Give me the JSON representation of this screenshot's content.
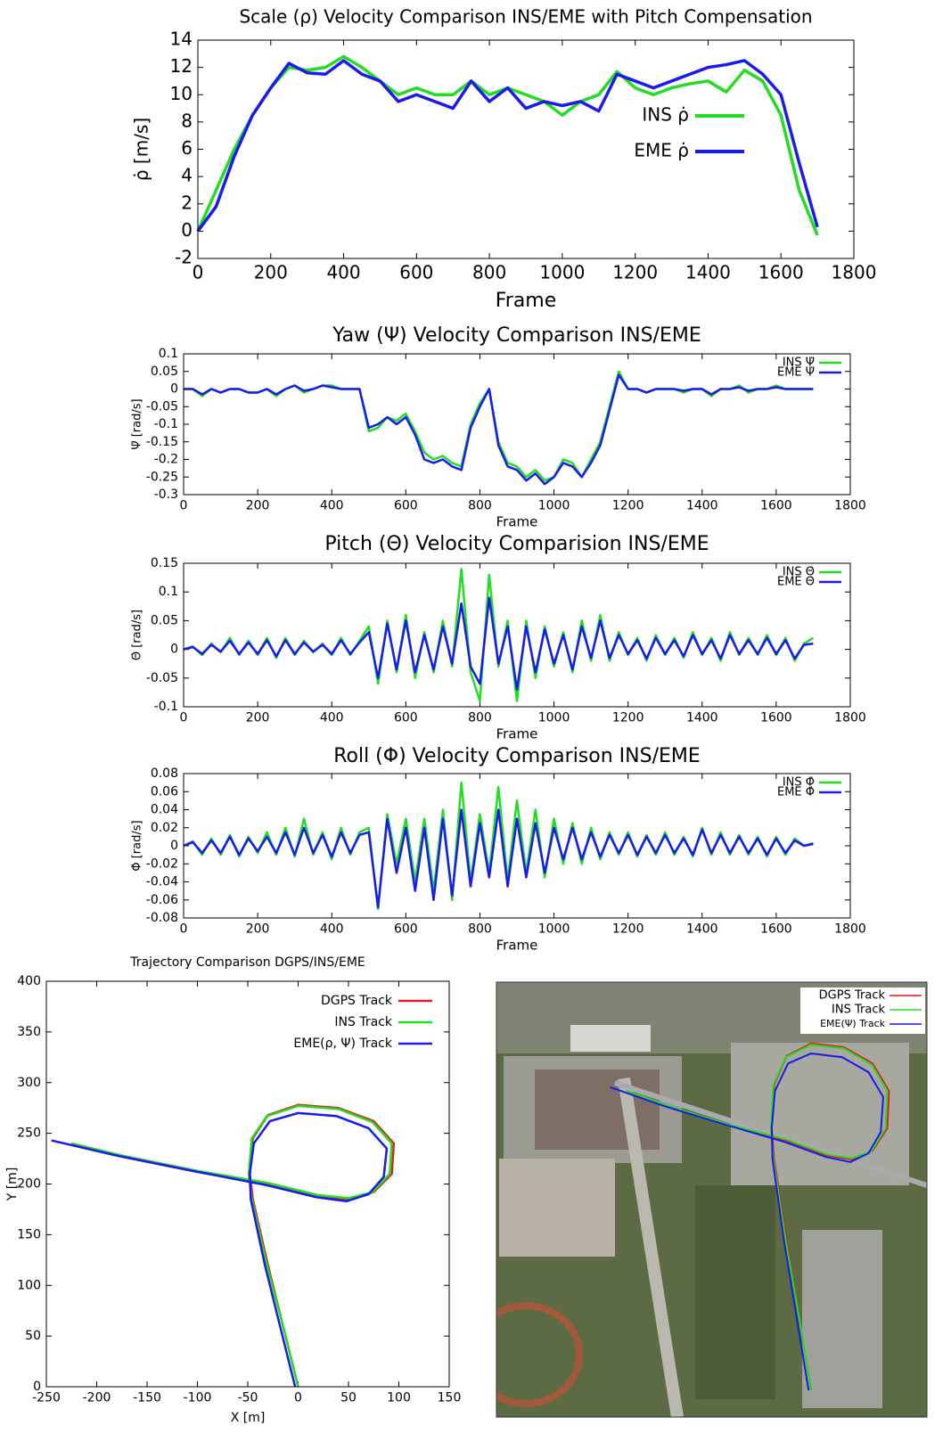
{
  "chart_data": [
    {
      "type": "line",
      "title": "Scale (ρ) Velocity Comparison INS/EME with Pitch Compensation",
      "xlabel": "Frame",
      "ylabel": "ρ̇ [m/s]",
      "x": [
        0,
        50,
        100,
        150,
        200,
        250,
        300,
        350,
        400,
        450,
        500,
        550,
        600,
        650,
        700,
        750,
        800,
        850,
        900,
        950,
        1000,
        1050,
        1100,
        1150,
        1200,
        1250,
        1300,
        1350,
        1400,
        1450,
        1500,
        1550,
        1600,
        1650,
        1700
      ],
      "series": [
        {
          "name": "INS ρ̇",
          "color": "#22dd22",
          "values": [
            0,
            3,
            6,
            8.5,
            10.5,
            12,
            11.8,
            12,
            12.8,
            12,
            11,
            10,
            10.5,
            10,
            10,
            11,
            10,
            10.5,
            10,
            9.5,
            8.5,
            9.5,
            10,
            11.7,
            10.5,
            10,
            10.5,
            10.8,
            11,
            10.2,
            11.8,
            11,
            8.5,
            3,
            -0.3
          ]
        },
        {
          "name": "EME ρ̇",
          "color": "#1a1aee",
          "values": [
            0,
            1.8,
            5.5,
            8.5,
            10.5,
            12.3,
            11.6,
            11.5,
            12.5,
            11.5,
            11,
            9.5,
            10,
            9.5,
            9,
            11,
            9.5,
            10.5,
            9,
            9.5,
            9.2,
            9.5,
            8.8,
            11.5,
            11,
            10.5,
            11,
            11.5,
            12,
            12.2,
            12.5,
            11.5,
            10,
            5,
            0.3
          ]
        }
      ],
      "xlim": [
        0,
        1800
      ],
      "xticks": [
        0,
        200,
        400,
        600,
        800,
        1000,
        1200,
        1400,
        1600,
        1800
      ],
      "ylim": [
        -2,
        14
      ],
      "yticks": [
        -2,
        0,
        2,
        4,
        6,
        8,
        10,
        12,
        14
      ],
      "legend": "upper right"
    },
    {
      "type": "line",
      "title": "Yaw (Ψ) Velocity Comparison INS/EME",
      "xlabel": "Frame",
      "ylabel": "Ψ̇ [rad/s]",
      "x": [
        0,
        25,
        50,
        75,
        100,
        125,
        150,
        175,
        200,
        225,
        250,
        275,
        300,
        325,
        350,
        375,
        400,
        425,
        450,
        475,
        500,
        525,
        550,
        575,
        600,
        625,
        650,
        675,
        700,
        725,
        750,
        775,
        800,
        825,
        850,
        875,
        900,
        925,
        950,
        975,
        1000,
        1025,
        1050,
        1075,
        1100,
        1125,
        1150,
        1175,
        1200,
        1225,
        1250,
        1275,
        1300,
        1325,
        1350,
        1375,
        1400,
        1425,
        1450,
        1475,
        1500,
        1525,
        1550,
        1575,
        1600,
        1625,
        1650,
        1675,
        1700
      ],
      "series": [
        {
          "name": "INS Ψ̇",
          "color": "#22dd22",
          "values": [
            0,
            0,
            -0.02,
            0,
            -0.01,
            0,
            0,
            -0.01,
            -0.01,
            0,
            -0.02,
            0,
            0.01,
            -0.01,
            0,
            0.01,
            0.01,
            0,
            0,
            0,
            -0.12,
            -0.11,
            -0.08,
            -0.09,
            -0.07,
            -0.12,
            -0.18,
            -0.2,
            -0.19,
            -0.21,
            -0.22,
            -0.1,
            -0.04,
            0,
            -0.15,
            -0.21,
            -0.22,
            -0.25,
            -0.23,
            -0.26,
            -0.25,
            -0.2,
            -0.21,
            -0.25,
            -0.2,
            -0.15,
            -0.05,
            0.05,
            0,
            0,
            -0.01,
            0,
            0,
            0,
            -0.01,
            0,
            0,
            -0.02,
            0,
            0,
            0.01,
            -0.01,
            0,
            0,
            0.01,
            0,
            0,
            0,
            0
          ]
        },
        {
          "name": "EME Ψ̇",
          "color": "#1a1aee",
          "values": [
            0,
            0,
            -0.015,
            0,
            -0.01,
            0,
            0,
            -0.01,
            -0.01,
            0,
            -0.015,
            0,
            0.01,
            -0.005,
            0,
            0.01,
            0.005,
            0,
            0,
            0,
            -0.11,
            -0.1,
            -0.08,
            -0.1,
            -0.08,
            -0.13,
            -0.2,
            -0.21,
            -0.2,
            -0.22,
            -0.23,
            -0.11,
            -0.05,
            0,
            -0.16,
            -0.22,
            -0.23,
            -0.26,
            -0.24,
            -0.27,
            -0.25,
            -0.21,
            -0.22,
            -0.25,
            -0.21,
            -0.16,
            -0.06,
            0.04,
            0,
            0,
            -0.01,
            0,
            0,
            0,
            -0.005,
            0,
            0,
            -0.015,
            0,
            0,
            0.005,
            -0.005,
            0,
            0,
            0.005,
            0,
            0,
            0,
            0
          ]
        }
      ],
      "xlim": [
        0,
        1800
      ],
      "xticks": [
        0,
        200,
        400,
        600,
        800,
        1000,
        1200,
        1400,
        1600,
        1800
      ],
      "ylim": [
        -0.3,
        0.1
      ],
      "yticks": [
        -0.3,
        -0.25,
        -0.2,
        -0.15,
        -0.1,
        -0.05,
        0,
        0.05,
        0.1
      ],
      "legend": "upper right"
    },
    {
      "type": "line",
      "title": "Pitch (Θ) Velocity Comparision INS/EME",
      "xlabel": "Frame",
      "ylabel": "Θ̇ [rad/s]",
      "x": [
        0,
        25,
        50,
        75,
        100,
        125,
        150,
        175,
        200,
        225,
        250,
        275,
        300,
        325,
        350,
        375,
        400,
        425,
        450,
        475,
        500,
        525,
        550,
        575,
        600,
        625,
        650,
        675,
        700,
        725,
        750,
        775,
        800,
        825,
        850,
        875,
        900,
        925,
        950,
        975,
        1000,
        1025,
        1050,
        1075,
        1100,
        1125,
        1150,
        1175,
        1200,
        1225,
        1250,
        1275,
        1300,
        1325,
        1350,
        1375,
        1400,
        1425,
        1450,
        1475,
        1500,
        1525,
        1550,
        1575,
        1600,
        1625,
        1650,
        1675,
        1700
      ],
      "series": [
        {
          "name": "INS Θ̇",
          "color": "#22dd22",
          "values": [
            0,
            0.005,
            -0.01,
            0.01,
            -0.005,
            0.02,
            -0.01,
            0.015,
            -0.01,
            0.02,
            -0.015,
            0.02,
            -0.01,
            0.015,
            -0.005,
            0.01,
            -0.01,
            0.02,
            -0.01,
            0.015,
            0.04,
            -0.06,
            0.05,
            -0.04,
            0.06,
            -0.05,
            0.03,
            -0.04,
            0.05,
            -0.03,
            0.14,
            -0.04,
            -0.09,
            0.13,
            -0.03,
            0.05,
            -0.09,
            0.05,
            -0.05,
            0.04,
            -0.03,
            0.03,
            -0.04,
            0.05,
            -0.02,
            0.06,
            -0.02,
            0.03,
            -0.01,
            0.02,
            -0.02,
            0.025,
            -0.01,
            0.02,
            -0.015,
            0.03,
            -0.01,
            0.02,
            -0.02,
            0.03,
            -0.01,
            0.02,
            -0.01,
            0.025,
            -0.01,
            0.02,
            -0.02,
            0.01,
            0.02
          ]
        },
        {
          "name": "EME Θ̇",
          "color": "#1a1aee",
          "values": [
            0,
            0.004,
            -0.008,
            0.008,
            -0.004,
            0.015,
            -0.008,
            0.012,
            -0.008,
            0.016,
            -0.012,
            0.016,
            -0.008,
            0.012,
            -0.004,
            0.008,
            -0.008,
            0.016,
            -0.008,
            0.012,
            0.03,
            -0.05,
            0.045,
            -0.035,
            0.05,
            -0.04,
            0.025,
            -0.035,
            0.04,
            -0.025,
            0.08,
            -0.03,
            -0.06,
            0.09,
            -0.025,
            0.04,
            -0.07,
            0.04,
            -0.04,
            0.035,
            -0.025,
            0.025,
            -0.035,
            0.04,
            -0.015,
            0.05,
            -0.015,
            0.025,
            -0.008,
            0.016,
            -0.016,
            0.02,
            -0.008,
            0.016,
            -0.012,
            0.025,
            -0.008,
            0.016,
            -0.016,
            0.025,
            -0.008,
            0.016,
            -0.008,
            0.02,
            -0.008,
            0.016,
            -0.016,
            0.008,
            0.01
          ]
        }
      ],
      "xlim": [
        0,
        1800
      ],
      "xticks": [
        0,
        200,
        400,
        600,
        800,
        1000,
        1200,
        1400,
        1600,
        1800
      ],
      "ylim": [
        -0.1,
        0.15
      ],
      "yticks": [
        -0.1,
        -0.05,
        0,
        0.05,
        0.1,
        0.15
      ],
      "legend": "upper right"
    },
    {
      "type": "line",
      "title": "Roll (Φ) Velocity Comparison INS/EME",
      "xlabel": "Frame",
      "ylabel": "Φ̇ [rad/s]",
      "x": [
        0,
        25,
        50,
        75,
        100,
        125,
        150,
        175,
        200,
        225,
        250,
        275,
        300,
        325,
        350,
        375,
        400,
        425,
        450,
        475,
        500,
        525,
        550,
        575,
        600,
        625,
        650,
        675,
        700,
        725,
        750,
        775,
        800,
        825,
        850,
        875,
        900,
        925,
        950,
        975,
        1000,
        1025,
        1050,
        1075,
        1100,
        1125,
        1150,
        1175,
        1200,
        1225,
        1250,
        1275,
        1300,
        1325,
        1350,
        1375,
        1400,
        1425,
        1450,
        1475,
        1500,
        1525,
        1550,
        1575,
        1600,
        1625,
        1650,
        1675,
        1700
      ],
      "series": [
        {
          "name": "INS Φ̇",
          "color": "#22dd22",
          "values": [
            0,
            0.005,
            -0.01,
            0.008,
            -0.01,
            0.012,
            -0.012,
            0.01,
            -0.008,
            0.015,
            -0.01,
            0.02,
            -0.012,
            0.03,
            -0.01,
            0.015,
            -0.015,
            0.02,
            -0.01,
            0.015,
            0.02,
            -0.07,
            0.035,
            -0.02,
            0.03,
            -0.04,
            0.03,
            -0.05,
            0.04,
            -0.06,
            0.07,
            -0.04,
            0.035,
            -0.03,
            0.065,
            -0.04,
            0.05,
            -0.03,
            0.04,
            -0.035,
            0.03,
            -0.02,
            0.025,
            -0.02,
            0.02,
            -0.015,
            0.015,
            -0.01,
            0.015,
            -0.012,
            0.012,
            -0.01,
            0.015,
            -0.01,
            0.01,
            -0.012,
            0.02,
            -0.01,
            0.015,
            -0.01,
            0.012,
            -0.01,
            0.01,
            -0.012,
            0.01,
            -0.01,
            0.008,
            0,
            0.003
          ]
        },
        {
          "name": "EME Φ̇",
          "color": "#1a1aee",
          "values": [
            0,
            0.004,
            -0.008,
            0.006,
            -0.008,
            0.01,
            -0.01,
            0.008,
            -0.006,
            0.01,
            -0.008,
            0.015,
            -0.01,
            0.02,
            -0.008,
            0.012,
            -0.012,
            0.015,
            -0.008,
            0.012,
            0.015,
            -0.068,
            0.03,
            -0.03,
            0.02,
            -0.05,
            0.02,
            -0.06,
            0.03,
            -0.055,
            0.04,
            -0.045,
            0.025,
            -0.035,
            0.04,
            -0.045,
            0.03,
            -0.035,
            0.025,
            -0.03,
            0.02,
            -0.015,
            0.02,
            -0.015,
            0.015,
            -0.012,
            0.012,
            -0.008,
            0.012,
            -0.01,
            0.01,
            -0.008,
            0.012,
            -0.008,
            0.008,
            -0.01,
            0.018,
            -0.008,
            0.012,
            -0.008,
            0.01,
            -0.008,
            0.008,
            -0.01,
            0.008,
            -0.008,
            0.006,
            0,
            0.002
          ]
        }
      ],
      "xlim": [
        0,
        1800
      ],
      "xticks": [
        0,
        200,
        400,
        600,
        800,
        1000,
        1200,
        1400,
        1600,
        1800
      ],
      "ylim": [
        -0.08,
        0.08
      ],
      "yticks": [
        -0.08,
        -0.06,
        -0.04,
        -0.02,
        0,
        0.02,
        0.04,
        0.06,
        0.08
      ],
      "legend": "upper right"
    },
    {
      "type": "trajectory",
      "title": "Trajectory Comparison DGPS/INS/EME",
      "xlabel": "X [m]",
      "ylabel": "Y [m]",
      "series": [
        {
          "name": "DGPS Track",
          "color": "#e41a1c",
          "x": [
            0,
            -15,
            -30,
            -45,
            -48,
            -45,
            -30,
            0,
            40,
            75,
            95,
            93,
            75,
            50,
            20,
            -30,
            -100,
            -170,
            -225
          ],
          "values": [
            0,
            60,
            120,
            185,
            210,
            245,
            268,
            278,
            275,
            262,
            240,
            210,
            192,
            185,
            188,
            200,
            212,
            226,
            240
          ]
        },
        {
          "name": "INS Track",
          "color": "#22dd22",
          "x": [
            0,
            -15,
            -31,
            -46,
            -49,
            -46,
            -31,
            0,
            40,
            74,
            93,
            91,
            74,
            50,
            20,
            -30,
            -100,
            -170,
            -225
          ],
          "values": [
            0,
            60,
            120,
            185,
            210,
            245,
            267,
            277,
            274,
            261,
            240,
            210,
            192,
            186,
            189,
            201,
            213,
            227,
            240
          ]
        },
        {
          "name": "EME(ρ, Ψ) Track",
          "color": "#1a1aee",
          "x": [
            -3,
            -18,
            -33,
            -47,
            -48,
            -44,
            -28,
            0,
            38,
            70,
            88,
            85,
            70,
            48,
            18,
            -32,
            -105,
            -180,
            -245
          ],
          "values": [
            0,
            60,
            120,
            185,
            210,
            240,
            262,
            270,
            267,
            255,
            235,
            207,
            190,
            183,
            187,
            199,
            213,
            228,
            243
          ]
        }
      ],
      "xlim": [
        -250,
        150
      ],
      "xticks": [
        -250,
        -200,
        -150,
        -100,
        -50,
        0,
        50,
        100,
        150
      ],
      "ylim": [
        0,
        400
      ],
      "yticks": [
        0,
        50,
        100,
        150,
        200,
        250,
        300,
        350,
        400
      ],
      "legend": "upper right"
    },
    {
      "type": "map-overlay",
      "legend_entries": [
        {
          "name": "DGPS Track",
          "color": "#e41a1c"
        },
        {
          "name": "INS Track",
          "color": "#22dd22"
        },
        {
          "name": "EME(Ψ) Track",
          "color": "#1a1aee"
        }
      ],
      "legend": "upper right"
    }
  ]
}
